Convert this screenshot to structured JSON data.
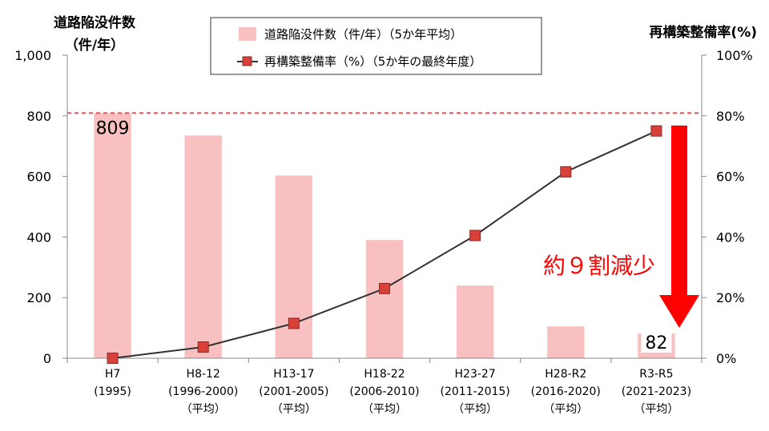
{
  "chart_data": {
    "type": "bar+line",
    "categories": [
      [
        "H7",
        "(1995)",
        ""
      ],
      [
        "H8-12",
        "(1996-2000)",
        "（平均）"
      ],
      [
        "H13-17",
        "(2001-2005)",
        "（平均）"
      ],
      [
        "H18-22",
        "(2006-2010)",
        "（平均）"
      ],
      [
        "H23-27",
        "(2011-2015)",
        "（平均）"
      ],
      [
        "H28-R2",
        "(2016-2020)",
        "（平均）"
      ],
      [
        "R3-R5",
        "(2021-2023)",
        "（平均）"
      ]
    ],
    "series": [
      {
        "name": "道路陥没件数（件/年）（5か年平均）",
        "type": "bar",
        "axis": "left",
        "color": "#f8c0c0",
        "values": [
          809,
          735,
          603,
          390,
          240,
          105,
          82
        ]
      },
      {
        "name": "再構築整備率（%）（5か年の最終年度）",
        "type": "line",
        "axis": "right",
        "color": "#333333",
        "marker_color": "#d9403a",
        "values": [
          0,
          3.7,
          11.5,
          23,
          40.5,
          61.5,
          75
        ]
      }
    ],
    "left_axis": {
      "label_line1": "道路陥没件数",
      "label_line2": "（件/年）",
      "ticks": [
        0,
        200,
        400,
        600,
        800,
        1000
      ],
      "tick_labels": [
        "0",
        "200",
        "400",
        "600",
        "800",
        "1,000"
      ],
      "ylim": [
        0,
        1000
      ]
    },
    "right_axis": {
      "label": "再構築整備率(%)",
      "ticks": [
        0,
        20,
        40,
        60,
        80,
        100
      ],
      "tick_labels": [
        "0%",
        "20%",
        "40%",
        "60%",
        "80%",
        "100%"
      ],
      "ylim": [
        0,
        100
      ]
    },
    "reference_line": {
      "value": 809,
      "color": "#e05050",
      "style": "dashed"
    },
    "data_labels": [
      {
        "index": 0,
        "text": "809"
      },
      {
        "index": 6,
        "text": "82"
      }
    ],
    "annotation": {
      "text": "約９割減少",
      "color": "#ff0000"
    },
    "legend_position": "top-center",
    "grid": false
  }
}
